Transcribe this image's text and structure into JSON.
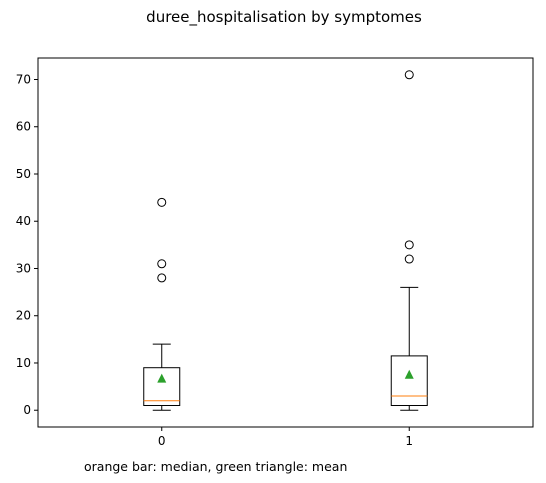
{
  "chart_data": {
    "type": "box",
    "title": "duree_hospitalisation by symptomes",
    "note": "orange bar: median, green triangle: mean",
    "xlabel": "",
    "ylabel": "",
    "categories": [
      "0",
      "1"
    ],
    "ylim": [
      -3.55,
      74.55
    ],
    "yticks": [
      "0",
      "10",
      "20",
      "30",
      "40",
      "50",
      "60",
      "70"
    ],
    "boxes": [
      {
        "category": "0",
        "whisker_low": 0,
        "q1": 1,
        "median": 2,
        "q3": 9,
        "whisker_high": 14,
        "mean": 6.7,
        "outliers": [
          28,
          31,
          44
        ]
      },
      {
        "category": "1",
        "whisker_low": 0,
        "q1": 1,
        "median": 3,
        "q3": 11.5,
        "whisker_high": 26,
        "mean": 7.5,
        "outliers": [
          32,
          35,
          71
        ]
      }
    ],
    "colors": {
      "median": "#ff7f0e",
      "mean": "#2ca02c",
      "box": "#000000"
    },
    "grid": false
  }
}
